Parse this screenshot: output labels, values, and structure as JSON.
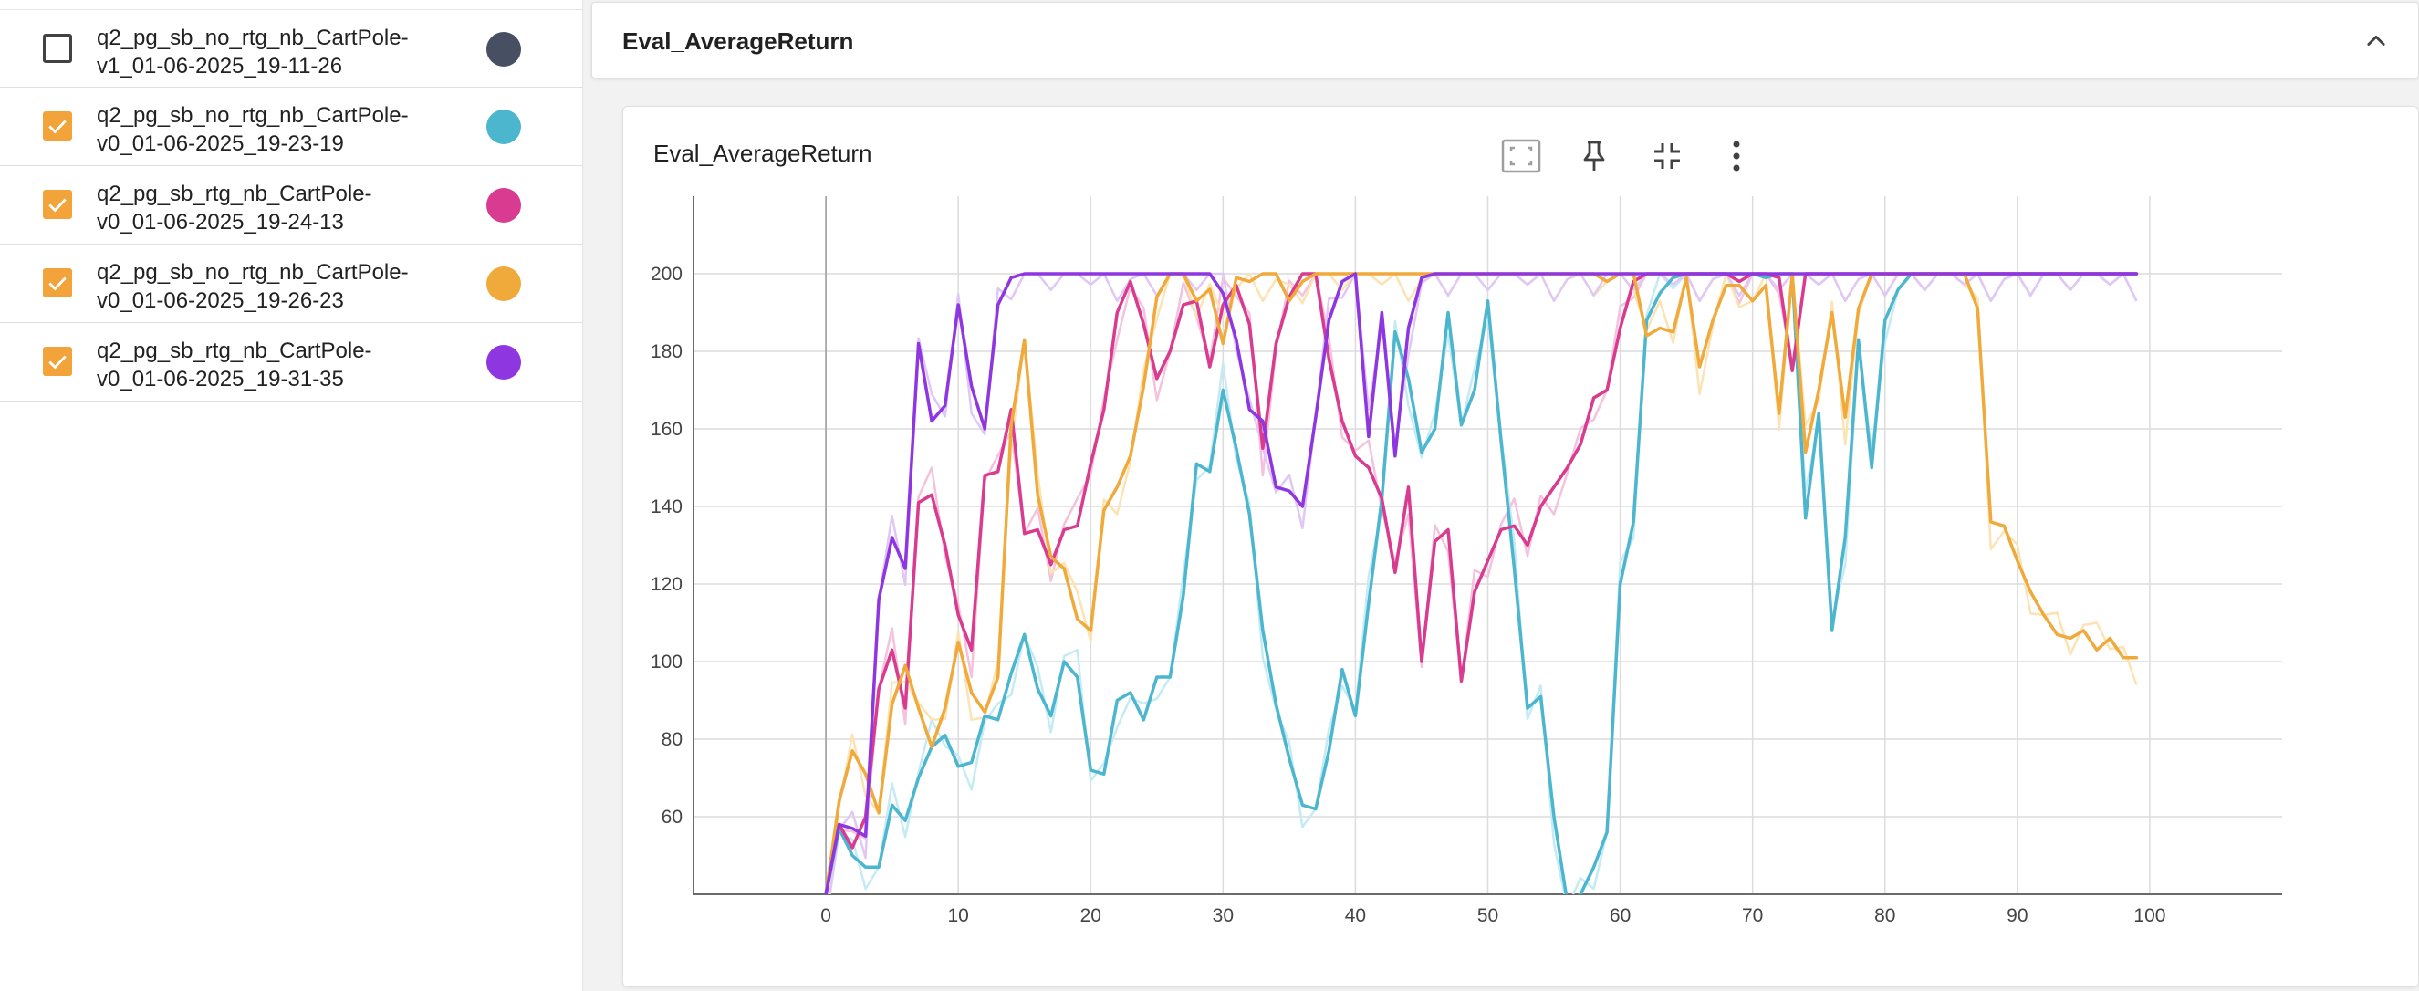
{
  "sidebar": {
    "runs": [
      {
        "name_line1": "q2_pg_sb_no_rtg_nb_CartPole-",
        "name_line2": "v1_01-06-2025_19-11-26",
        "checked": false,
        "color": "#474f63"
      },
      {
        "name_line1": "q2_pg_sb_no_rtg_nb_CartPole-",
        "name_line2": "v0_01-06-2025_19-23-19",
        "checked": true,
        "color": "#4db6cf"
      },
      {
        "name_line1": "q2_pg_sb_rtg_nb_CartPole-",
        "name_line2": "v0_01-06-2025_19-24-13",
        "checked": true,
        "color": "#d83b8f"
      },
      {
        "name_line1": "q2_pg_sb_no_rtg_nb_CartPole-",
        "name_line2": "v0_01-06-2025_19-26-23",
        "checked": true,
        "color": "#f0aa3b"
      },
      {
        "name_line1": "q2_pg_sb_rtg_nb_CartPole-",
        "name_line2": "v0_01-06-2025_19-31-35",
        "checked": true,
        "color": "#8e36e0"
      }
    ]
  },
  "main": {
    "group_title": "Eval_AverageReturn",
    "card_title": "Eval_AverageReturn",
    "icons": [
      "collapse-chevron-up-icon",
      "fit-to-screen-icon",
      "pin-icon",
      "collapse-card-icon",
      "more-vert-icon"
    ]
  },
  "chart_data": {
    "type": "line",
    "title": "Eval_AverageReturn",
    "xlim": [
      -10,
      110
    ],
    "ylim": [
      40,
      220
    ],
    "x_ticks": [
      0,
      10,
      20,
      30,
      40,
      50,
      60,
      70,
      80,
      90,
      100
    ],
    "y_ticks": [
      60,
      80,
      100,
      120,
      140,
      160,
      180,
      200
    ],
    "grid": true,
    "smoothing": "light raw trace behind smoothed trace",
    "series": [
      {
        "color": "#4db6cf",
        "light_color": "#c4ebf4",
        "values": [
          40,
          57,
          50,
          47,
          47,
          63,
          59,
          70,
          78,
          81,
          73,
          74,
          86,
          85,
          97,
          107,
          93,
          86,
          100,
          96,
          72,
          71,
          90,
          92,
          85,
          96,
          96,
          117,
          151,
          149,
          170,
          155,
          138,
          108,
          89,
          75,
          63,
          62,
          77,
          98,
          86,
          115,
          142,
          185,
          173,
          154,
          160,
          190,
          161,
          170,
          193,
          157,
          124,
          88,
          91,
          60,
          38,
          40,
          47,
          56,
          120,
          136,
          188,
          195,
          199,
          200,
          200,
          200,
          200,
          200,
          200,
          199,
          200,
          200,
          137,
          164,
          108,
          132,
          183,
          150,
          188,
          196,
          200,
          200,
          200,
          200,
          200,
          200,
          200,
          200,
          200,
          200,
          200,
          200,
          200,
          200,
          200,
          200,
          200,
          200
        ]
      },
      {
        "color": "#d83b8f",
        "light_color": "#f4c2dc",
        "values": [
          40,
          58,
          52,
          60,
          93,
          103,
          88,
          141,
          143,
          130,
          112,
          103,
          148,
          149,
          165,
          133,
          134,
          125,
          134,
          135,
          151,
          165,
          190,
          198,
          187,
          173,
          180,
          192,
          193,
          176,
          192,
          197,
          187,
          155,
          182,
          194,
          200,
          200,
          178,
          162,
          153,
          150,
          142,
          123,
          145,
          100,
          131,
          134,
          95,
          118,
          126,
          134,
          135,
          130,
          140,
          145,
          150,
          156,
          168,
          170,
          186,
          198,
          200,
          200,
          200,
          200,
          200,
          200,
          200,
          198,
          200,
          200,
          199,
          175,
          200,
          200,
          200,
          200,
          200,
          200,
          200,
          200,
          200,
          200,
          200,
          200,
          200,
          200,
          200,
          200,
          200,
          200,
          200,
          200,
          200,
          200,
          200,
          200,
          200,
          200
        ]
      },
      {
        "color": "#f0aa3b",
        "light_color": "#fbe3b4",
        "values": [
          40,
          64,
          77,
          71,
          61,
          89,
          99,
          88,
          78,
          88,
          105,
          92,
          87,
          96,
          161,
          183,
          143,
          127,
          124,
          111,
          108,
          139,
          145,
          153,
          171,
          194,
          200,
          200,
          193,
          196,
          182,
          199,
          198,
          200,
          200,
          193,
          198,
          200,
          200,
          200,
          200,
          200,
          200,
          200,
          200,
          200,
          200,
          200,
          200,
          200,
          200,
          200,
          200,
          200,
          200,
          200,
          200,
          200,
          200,
          198,
          200,
          200,
          184,
          186,
          185,
          199,
          176,
          188,
          197,
          197,
          193,
          197,
          164,
          200,
          154,
          170,
          190,
          163,
          191,
          200,
          200,
          200,
          200,
          200,
          200,
          200,
          200,
          191,
          136,
          135,
          126,
          118,
          112,
          107,
          106,
          108,
          103,
          106,
          101,
          101
        ]
      },
      {
        "color": "#8e36e0",
        "light_color": "#e0c8f6",
        "values": [
          40,
          58,
          57,
          55,
          116,
          132,
          124,
          182,
          162,
          166,
          192,
          171,
          160,
          192,
          199,
          200,
          200,
          200,
          200,
          200,
          200,
          200,
          200,
          200,
          200,
          200,
          200,
          200,
          200,
          200,
          195,
          183,
          165,
          162,
          145,
          144,
          140,
          163,
          188,
          198,
          200,
          158,
          190,
          153,
          186,
          199,
          200,
          200,
          200,
          200,
          200,
          200,
          200,
          200,
          200,
          200,
          200,
          200,
          200,
          200,
          200,
          200,
          200,
          200,
          200,
          200,
          200,
          200,
          200,
          200,
          200,
          200,
          200,
          200,
          200,
          200,
          200,
          200,
          200,
          200,
          200,
          200,
          200,
          200,
          200,
          200,
          200,
          200,
          200,
          200,
          200,
          200,
          200,
          200,
          200,
          200,
          200,
          200,
          200,
          200
        ]
      }
    ]
  }
}
